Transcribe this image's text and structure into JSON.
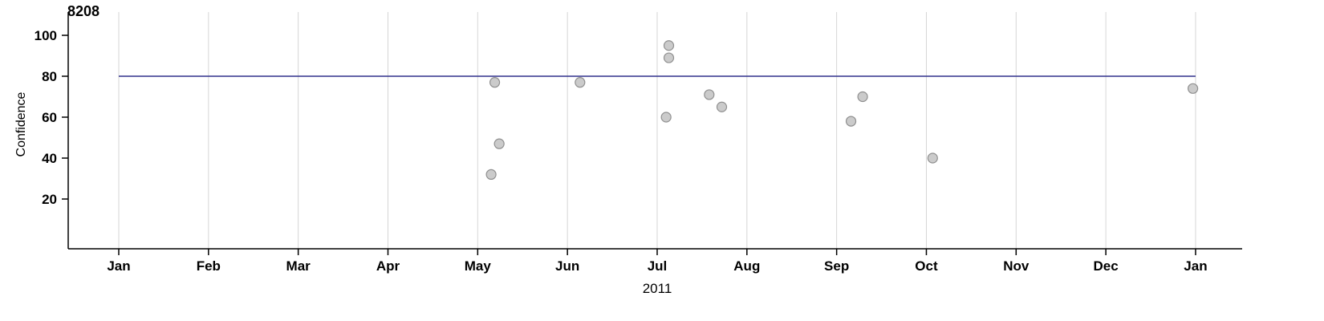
{
  "chart_data": {
    "type": "scatter",
    "title": "8208",
    "xlabel": "2011",
    "ylabel": "Confidence",
    "x_tick_labels": [
      "Jan",
      "Feb",
      "Mar",
      "Apr",
      "May",
      "Jun",
      "Jul",
      "Aug",
      "Sep",
      "Oct",
      "Nov",
      "Dec",
      "Jan"
    ],
    "y_ticks": [
      20,
      40,
      60,
      80,
      100
    ],
    "ylim": [
      0,
      105
    ],
    "xlim_months": [
      0,
      12
    ],
    "grid": "vertical-only",
    "legend": "none",
    "reference_line": {
      "y": 80,
      "color": "#30308c"
    },
    "points": [
      {
        "x": 4.15,
        "y": 32
      },
      {
        "x": 4.19,
        "y": 77
      },
      {
        "x": 4.24,
        "y": 47
      },
      {
        "x": 5.14,
        "y": 77
      },
      {
        "x": 6.1,
        "y": 60
      },
      {
        "x": 6.13,
        "y": 95
      },
      {
        "x": 6.13,
        "y": 89
      },
      {
        "x": 6.58,
        "y": 71
      },
      {
        "x": 6.72,
        "y": 65
      },
      {
        "x": 8.16,
        "y": 58
      },
      {
        "x": 8.29,
        "y": 70
      },
      {
        "x": 9.07,
        "y": 40
      },
      {
        "x": 11.97,
        "y": 74
      }
    ],
    "point_style": {
      "fill": "#cbcbcb",
      "stroke": "#8f8f8f",
      "radius": 6
    },
    "colors": {
      "axis": "#000000",
      "grid": "#d6d6d6",
      "background": "#ffffff"
    }
  }
}
